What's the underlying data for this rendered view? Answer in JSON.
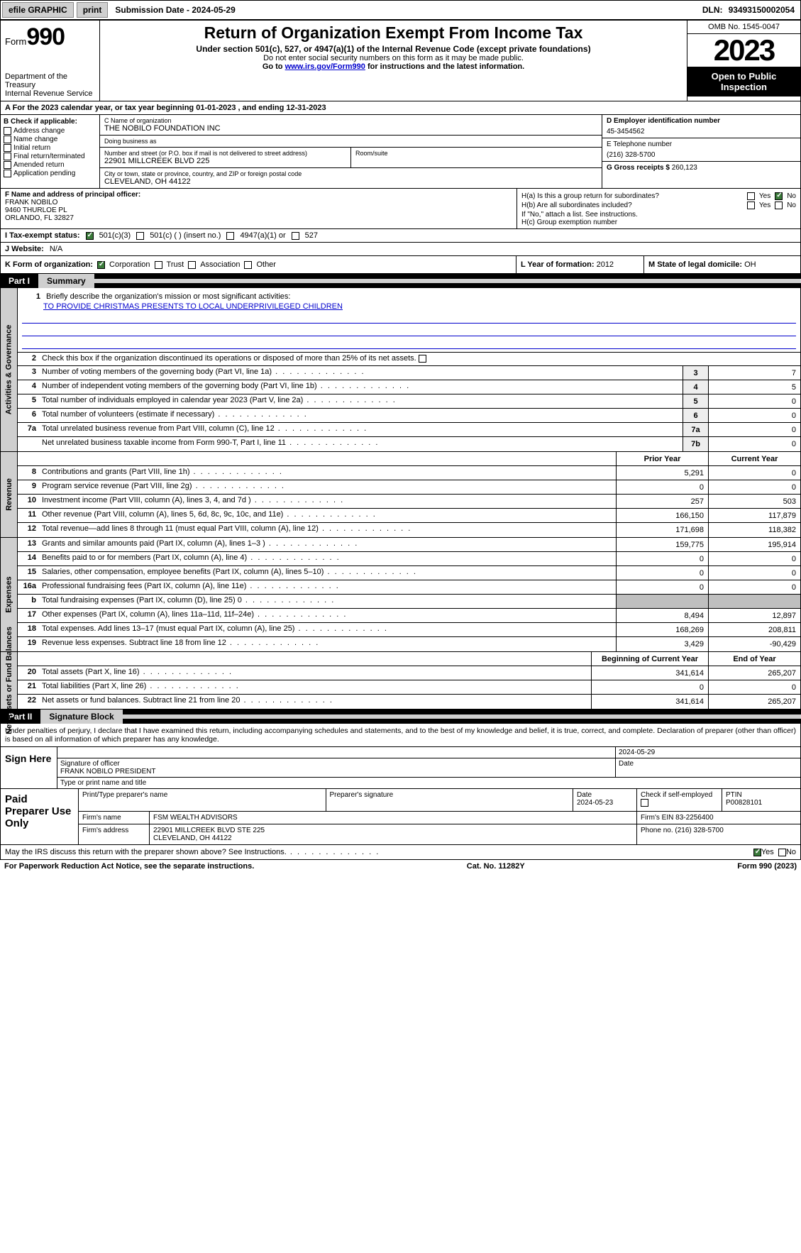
{
  "colors": {
    "black": "#000000",
    "grey_btn": "#cfcfcf",
    "grey_cell": "#bfbfbf",
    "link": "#0000cc",
    "check_green": "#3a7a3a"
  },
  "topbar": {
    "efile": "efile GRAPHIC",
    "print": "print",
    "submission": "Submission Date - 2024-05-29",
    "dln_label": "DLN:",
    "dln": "93493150002054"
  },
  "header": {
    "form_word": "Form",
    "form_num": "990",
    "dept": "Department of the Treasury\nInternal Revenue Service",
    "title": "Return of Organization Exempt From Income Tax",
    "sub": "Under section 501(c), 527, or 4947(a)(1) of the Internal Revenue Code (except private foundations)",
    "nossn": "Do not enter social security numbers on this form as it may be made public.",
    "goto_pre": "Go to ",
    "goto_link": "www.irs.gov/Form990",
    "goto_post": " for instructions and the latest information.",
    "omb": "OMB No. 1545-0047",
    "year": "2023",
    "open": "Open to Public Inspection"
  },
  "line_a": {
    "pre": "A For the 2023 calendar year, or tax year beginning ",
    "begin": "01-01-2023",
    "mid": " , and ending ",
    "end": "12-31-2023"
  },
  "box_b": {
    "hdr": "B Check if applicable:",
    "items": [
      "Address change",
      "Name change",
      "Initial return",
      "Final return/terminated",
      "Amended return",
      "Application pending"
    ]
  },
  "box_c": {
    "name_lbl": "C Name of organization",
    "name": "THE NOBILO FOUNDATION INC",
    "dba_lbl": "Doing business as",
    "dba": "",
    "street_lbl": "Number and street (or P.O. box if mail is not delivered to street address)",
    "street": "22901 MILLCREEK BLVD 225",
    "room_lbl": "Room/suite",
    "city_lbl": "City or town, state or province, country, and ZIP or foreign postal code",
    "city": "CLEVELAND, OH  44122"
  },
  "box_d": {
    "lbl": "D Employer identification number",
    "val": "45-3454562"
  },
  "box_e": {
    "lbl": "E Telephone number",
    "val": "(216) 328-5700"
  },
  "box_g": {
    "lbl": "G Gross receipts $",
    "val": "260,123"
  },
  "box_f": {
    "lbl": "F  Name and address of principal officer:",
    "name": "FRANK NOBILO",
    "addr1": "9460 THURLOE PL",
    "addr2": "ORLANDO, FL  32827"
  },
  "box_h": {
    "a_lbl": "H(a)  Is this a group return for subordinates?",
    "a_yes": "Yes",
    "a_no": "No",
    "b_lbl": "H(b)  Are all subordinates included?",
    "b_note": "If \"No,\" attach a list. See instructions.",
    "c_lbl": "H(c)  Group exemption number"
  },
  "box_i": {
    "lbl": "I   Tax-exempt status:",
    "o1": "501(c)(3)",
    "o2": "501(c) (  ) (insert no.)",
    "o3": "4947(a)(1) or",
    "o4": "527"
  },
  "box_j": {
    "lbl": "J   Website:",
    "val": "N/A"
  },
  "box_k": {
    "lbl": "K Form of organization:",
    "o1": "Corporation",
    "o2": "Trust",
    "o3": "Association",
    "o4": "Other"
  },
  "box_l": {
    "lbl": "L Year of formation:",
    "val": "2012"
  },
  "box_m": {
    "lbl": "M State of legal domicile:",
    "val": "OH"
  },
  "part1": {
    "tab": "Part I",
    "title": "Summary"
  },
  "summary": {
    "q1_lbl": "Briefly describe the organization's mission or most significant activities:",
    "q1_val": "TO PROVIDE CHRISTMAS PRESENTS TO LOCAL UNDERPRIVILEGED CHILDREN",
    "q2": "Check this box      if the organization discontinued its operations or disposed of more than 25% of its net assets.",
    "gov_label": "Activities & Governance",
    "rev_label": "Revenue",
    "exp_label": "Expenses",
    "net_label": "Net Assets or Fund Balances",
    "prior_hdr": "Prior Year",
    "curr_hdr": "Current Year",
    "boy_hdr": "Beginning of Current Year",
    "eoy_hdr": "End of Year",
    "rows_gov": [
      {
        "n": "3",
        "d": "Number of voting members of the governing body (Part VI, line 1a)",
        "box": "3",
        "v": "7"
      },
      {
        "n": "4",
        "d": "Number of independent voting members of the governing body (Part VI, line 1b)",
        "box": "4",
        "v": "5"
      },
      {
        "n": "5",
        "d": "Total number of individuals employed in calendar year 2023 (Part V, line 2a)",
        "box": "5",
        "v": "0"
      },
      {
        "n": "6",
        "d": "Total number of volunteers (estimate if necessary)",
        "box": "6",
        "v": "0"
      },
      {
        "n": "7a",
        "d": "Total unrelated business revenue from Part VIII, column (C), line 12",
        "box": "7a",
        "v": "0"
      },
      {
        "n": "",
        "d": "Net unrelated business taxable income from Form 990-T, Part I, line 11",
        "box": "7b",
        "v": "0"
      }
    ],
    "rows_rev": [
      {
        "n": "8",
        "d": "Contributions and grants (Part VIII, line 1h)",
        "py": "5,291",
        "cy": "0"
      },
      {
        "n": "9",
        "d": "Program service revenue (Part VIII, line 2g)",
        "py": "0",
        "cy": "0"
      },
      {
        "n": "10",
        "d": "Investment income (Part VIII, column (A), lines 3, 4, and 7d )",
        "py": "257",
        "cy": "503"
      },
      {
        "n": "11",
        "d": "Other revenue (Part VIII, column (A), lines 5, 6d, 8c, 9c, 10c, and 11e)",
        "py": "166,150",
        "cy": "117,879"
      },
      {
        "n": "12",
        "d": "Total revenue—add lines 8 through 11 (must equal Part VIII, column (A), line 12)",
        "py": "171,698",
        "cy": "118,382"
      }
    ],
    "rows_exp": [
      {
        "n": "13",
        "d": "Grants and similar amounts paid (Part IX, column (A), lines 1–3 )",
        "py": "159,775",
        "cy": "195,914"
      },
      {
        "n": "14",
        "d": "Benefits paid to or for members (Part IX, column (A), line 4)",
        "py": "0",
        "cy": "0"
      },
      {
        "n": "15",
        "d": "Salaries, other compensation, employee benefits (Part IX, column (A), lines 5–10)",
        "py": "0",
        "cy": "0"
      },
      {
        "n": "16a",
        "d": "Professional fundraising fees (Part IX, column (A), line 11e)",
        "py": "0",
        "cy": "0"
      },
      {
        "n": "b",
        "d": "Total fundraising expenses (Part IX, column (D), line 25) 0",
        "py": "",
        "cy": "",
        "grey": true
      },
      {
        "n": "17",
        "d": "Other expenses (Part IX, column (A), lines 11a–11d, 11f–24e)",
        "py": "8,494",
        "cy": "12,897"
      },
      {
        "n": "18",
        "d": "Total expenses. Add lines 13–17 (must equal Part IX, column (A), line 25)",
        "py": "168,269",
        "cy": "208,811"
      },
      {
        "n": "19",
        "d": "Revenue less expenses. Subtract line 18 from line 12",
        "py": "3,429",
        "cy": "-90,429"
      }
    ],
    "rows_net": [
      {
        "n": "20",
        "d": "Total assets (Part X, line 16)",
        "py": "341,614",
        "cy": "265,207"
      },
      {
        "n": "21",
        "d": "Total liabilities (Part X, line 26)",
        "py": "0",
        "cy": "0"
      },
      {
        "n": "22",
        "d": "Net assets or fund balances. Subtract line 21 from line 20",
        "py": "341,614",
        "cy": "265,207"
      }
    ]
  },
  "part2": {
    "tab": "Part II",
    "title": "Signature Block"
  },
  "sig": {
    "perjury": "Under penalties of perjury, I declare that I have examined this return, including accompanying schedules and statements, and to the best of my knowledge and belief, it is true, correct, and complete. Declaration of preparer (other than officer) is based on all information of which preparer has any knowledge.",
    "sign_here": "Sign Here",
    "sig_officer_lbl": "Signature of officer",
    "officer_name": "FRANK NOBILO  PRESIDENT",
    "type_lbl": "Type or print name and title",
    "date_lbl": "Date",
    "date_val": "2024-05-29"
  },
  "paid": {
    "hdr": "Paid Preparer Use Only",
    "print_lbl": "Print/Type preparer's name",
    "sig_lbl": "Preparer's signature",
    "date_lbl": "Date",
    "date_val": "2024-05-23",
    "check_lbl": "Check       if self-employed",
    "ptin_lbl": "PTIN",
    "ptin": "P00828101",
    "firm_name_lbl": "Firm's name",
    "firm_name": "FSM WEALTH ADVISORS",
    "firm_ein_lbl": "Firm's EIN",
    "firm_ein": "83-2256400",
    "firm_addr_lbl": "Firm's address",
    "firm_addr1": "22901 MILLCREEK BLVD STE 225",
    "firm_addr2": "CLEVELAND, OH  44122",
    "phone_lbl": "Phone no.",
    "phone": "(216) 328-5700"
  },
  "discuss": {
    "q": "May the IRS discuss this return with the preparer shown above? See Instructions.",
    "yes": "Yes",
    "no": "No"
  },
  "footer": {
    "left": "For Paperwork Reduction Act Notice, see the separate instructions.",
    "center": "Cat. No. 11282Y",
    "right_pre": "Form ",
    "right_form": "990",
    "right_post": " (2023)"
  }
}
